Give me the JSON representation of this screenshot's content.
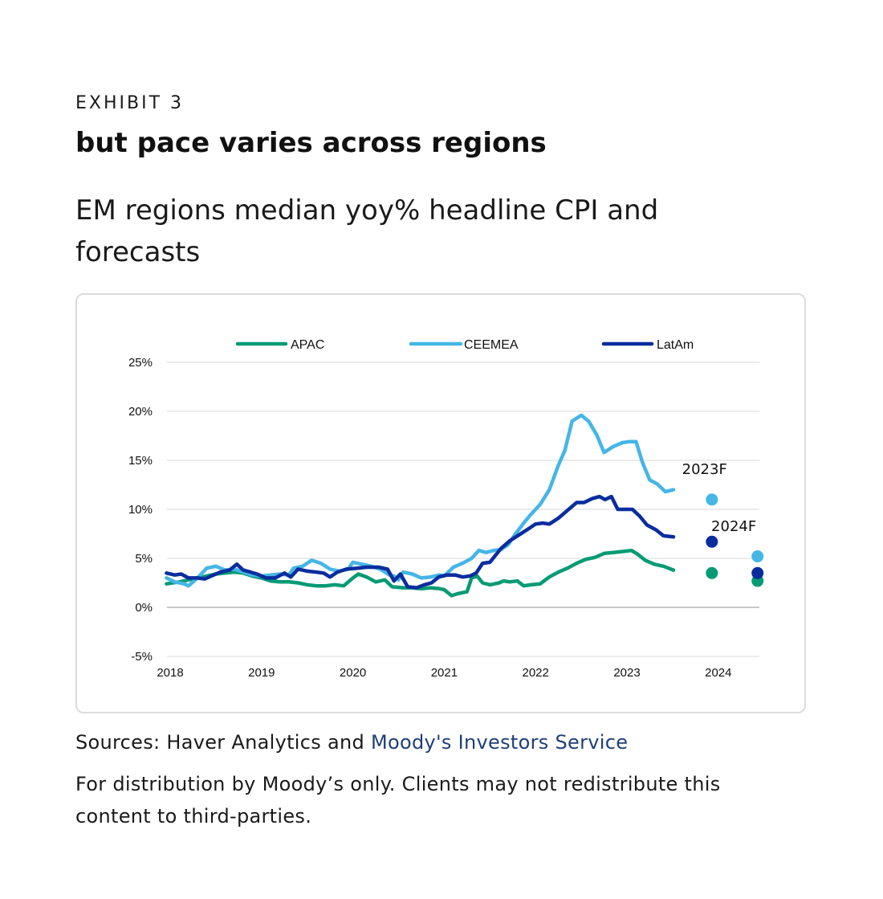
{
  "header": {
    "exhibit": "EXHIBIT 3",
    "title": "but pace varies across regions",
    "subtitle": "EM regions median yoy% headline CPI and forecasts"
  },
  "footer": {
    "sources_prefix": "Sources: Haver Analytics and ",
    "sources_link": "Moody's Investors Service",
    "distribution": "For distribution by Moody’s only. Clients may not redistribute this content to third-parties."
  },
  "colors": {
    "APAC": "#079b74",
    "CEEMEA": "#45b6e6",
    "LatAm": "#0a2d9e",
    "grid": "#d9d9d9",
    "zero_line": "#a6a6a6"
  },
  "chart_data": {
    "type": "line",
    "title": "",
    "xlabel": "",
    "ylabel": "",
    "x_range": [
      2018,
      2024.5
    ],
    "ylim": [
      -5,
      25
    ],
    "y_ticks": [
      -5,
      0,
      5,
      10,
      15,
      20,
      25
    ],
    "y_tick_labels": [
      "-5%",
      "0%",
      "5%",
      "10%",
      "15%",
      "20%",
      "25%"
    ],
    "x_ticks": [
      2018,
      2019,
      2020,
      2021,
      2022,
      2023,
      2024
    ],
    "x_tick_labels": [
      "2018",
      "2019",
      "2020",
      "2021",
      "2022",
      "2023",
      "2024"
    ],
    "grid": true,
    "legend_position": "top",
    "series": [
      {
        "name": "APAC",
        "color": "#079b74",
        "points": [
          [
            2017.96,
            2.4
          ],
          [
            2018.1,
            2.6
          ],
          [
            2018.2,
            2.8
          ],
          [
            2018.3,
            3.0
          ],
          [
            2018.4,
            3.2
          ],
          [
            2018.5,
            3.4
          ],
          [
            2018.6,
            3.5
          ],
          [
            2018.7,
            3.6
          ],
          [
            2018.8,
            3.5
          ],
          [
            2018.9,
            3.2
          ],
          [
            2019.0,
            3.0
          ],
          [
            2019.1,
            2.7
          ],
          [
            2019.2,
            2.6
          ],
          [
            2019.3,
            2.6
          ],
          [
            2019.4,
            2.5
          ],
          [
            2019.5,
            2.3
          ],
          [
            2019.6,
            2.2
          ],
          [
            2019.7,
            2.2
          ],
          [
            2019.8,
            2.3
          ],
          [
            2019.9,
            2.2
          ],
          [
            2020.0,
            3.0
          ],
          [
            2020.06,
            3.4
          ],
          [
            2020.15,
            3.1
          ],
          [
            2020.25,
            2.6
          ],
          [
            2020.35,
            2.8
          ],
          [
            2020.43,
            2.1
          ],
          [
            2020.55,
            2.0
          ],
          [
            2020.65,
            2.0
          ],
          [
            2020.75,
            1.9
          ],
          [
            2020.85,
            2.0
          ],
          [
            2020.95,
            1.9
          ],
          [
            2021.0,
            1.8
          ],
          [
            2021.08,
            1.2
          ],
          [
            2021.15,
            1.4
          ],
          [
            2021.2,
            1.5
          ],
          [
            2021.25,
            1.6
          ],
          [
            2021.3,
            3.0
          ],
          [
            2021.36,
            3.2
          ],
          [
            2021.42,
            2.5
          ],
          [
            2021.5,
            2.3
          ],
          [
            2021.6,
            2.5
          ],
          [
            2021.65,
            2.7
          ],
          [
            2021.72,
            2.6
          ],
          [
            2021.8,
            2.7
          ],
          [
            2021.87,
            2.2
          ],
          [
            2021.95,
            2.3
          ],
          [
            2022.05,
            2.4
          ],
          [
            2022.15,
            3.1
          ],
          [
            2022.25,
            3.6
          ],
          [
            2022.35,
            4.0
          ],
          [
            2022.45,
            4.5
          ],
          [
            2022.55,
            4.9
          ],
          [
            2022.65,
            5.1
          ],
          [
            2022.75,
            5.5
          ],
          [
            2022.85,
            5.6
          ],
          [
            2022.95,
            5.7
          ],
          [
            2023.05,
            5.8
          ],
          [
            2023.12,
            5.4
          ],
          [
            2023.2,
            4.8
          ],
          [
            2023.3,
            4.4
          ],
          [
            2023.4,
            4.2
          ],
          [
            2023.51,
            3.8
          ]
        ],
        "forecasts": [
          {
            "label": "2023F",
            "x": 2023.93,
            "y": 3.5
          },
          {
            "label": "2024F",
            "x": 2024.43,
            "y": 2.7
          }
        ]
      },
      {
        "name": "CEEMEA",
        "color": "#45b6e6",
        "points": [
          [
            2017.96,
            3.0
          ],
          [
            2018.05,
            2.6
          ],
          [
            2018.15,
            2.4
          ],
          [
            2018.2,
            2.2
          ],
          [
            2018.3,
            3.0
          ],
          [
            2018.4,
            4.0
          ],
          [
            2018.5,
            4.2
          ],
          [
            2018.6,
            3.8
          ],
          [
            2018.7,
            3.9
          ],
          [
            2018.8,
            3.6
          ],
          [
            2018.9,
            3.3
          ],
          [
            2019.0,
            3.2
          ],
          [
            2019.1,
            3.3
          ],
          [
            2019.2,
            3.4
          ],
          [
            2019.3,
            3.3
          ],
          [
            2019.35,
            4.0
          ],
          [
            2019.45,
            4.2
          ],
          [
            2019.55,
            4.8
          ],
          [
            2019.65,
            4.5
          ],
          [
            2019.75,
            3.9
          ],
          [
            2019.85,
            3.7
          ],
          [
            2019.95,
            3.9
          ],
          [
            2020.0,
            4.6
          ],
          [
            2020.1,
            4.4
          ],
          [
            2020.2,
            4.2
          ],
          [
            2020.3,
            3.9
          ],
          [
            2020.4,
            3.3
          ],
          [
            2020.45,
            3.2
          ],
          [
            2020.5,
            2.8
          ],
          [
            2020.55,
            3.6
          ],
          [
            2020.65,
            3.4
          ],
          [
            2020.75,
            3.0
          ],
          [
            2020.85,
            3.1
          ],
          [
            2020.95,
            3.3
          ],
          [
            2021.0,
            3.2
          ],
          [
            2021.1,
            4.1
          ],
          [
            2021.2,
            4.5
          ],
          [
            2021.3,
            5.0
          ],
          [
            2021.38,
            5.8
          ],
          [
            2021.46,
            5.6
          ],
          [
            2021.54,
            5.8
          ],
          [
            2021.62,
            5.9
          ],
          [
            2021.7,
            6.4
          ],
          [
            2021.78,
            7.5
          ],
          [
            2021.87,
            8.6
          ],
          [
            2021.95,
            9.5
          ],
          [
            2022.05,
            10.5
          ],
          [
            2022.15,
            12.0
          ],
          [
            2022.25,
            14.5
          ],
          [
            2022.32,
            16.0
          ],
          [
            2022.4,
            19.0
          ],
          [
            2022.5,
            19.6
          ],
          [
            2022.58,
            19.0
          ],
          [
            2022.67,
            17.6
          ],
          [
            2022.75,
            15.8
          ],
          [
            2022.85,
            16.4
          ],
          [
            2022.95,
            16.8
          ],
          [
            2023.02,
            16.9
          ],
          [
            2023.1,
            16.9
          ],
          [
            2023.17,
            14.8
          ],
          [
            2023.25,
            13.0
          ],
          [
            2023.33,
            12.6
          ],
          [
            2023.42,
            11.8
          ],
          [
            2023.51,
            12.0
          ]
        ],
        "forecasts": [
          {
            "label": "2023F",
            "x": 2023.93,
            "y": 11.0
          },
          {
            "label": "2024F",
            "x": 2024.43,
            "y": 5.2
          }
        ]
      },
      {
        "name": "LatAm",
        "color": "#0a2d9e",
        "points": [
          [
            2017.96,
            3.5
          ],
          [
            2018.05,
            3.3
          ],
          [
            2018.12,
            3.4
          ],
          [
            2018.2,
            3.0
          ],
          [
            2018.3,
            3.0
          ],
          [
            2018.38,
            2.9
          ],
          [
            2018.45,
            3.2
          ],
          [
            2018.55,
            3.6
          ],
          [
            2018.65,
            3.8
          ],
          [
            2018.73,
            4.4
          ],
          [
            2018.8,
            3.8
          ],
          [
            2018.88,
            3.6
          ],
          [
            2018.95,
            3.4
          ],
          [
            2019.05,
            3.0
          ],
          [
            2019.15,
            3.0
          ],
          [
            2019.25,
            3.5
          ],
          [
            2019.32,
            3.1
          ],
          [
            2019.4,
            3.9
          ],
          [
            2019.5,
            3.7
          ],
          [
            2019.6,
            3.6
          ],
          [
            2019.68,
            3.5
          ],
          [
            2019.75,
            3.1
          ],
          [
            2019.83,
            3.6
          ],
          [
            2019.93,
            3.9
          ],
          [
            2020.05,
            4.0
          ],
          [
            2020.15,
            4.1
          ],
          [
            2020.28,
            4.1
          ],
          [
            2020.38,
            3.9
          ],
          [
            2020.45,
            2.7
          ],
          [
            2020.52,
            3.4
          ],
          [
            2020.6,
            2.1
          ],
          [
            2020.7,
            2.0
          ],
          [
            2020.78,
            2.3
          ],
          [
            2020.86,
            2.5
          ],
          [
            2020.94,
            3.1
          ],
          [
            2021.03,
            3.3
          ],
          [
            2021.12,
            3.3
          ],
          [
            2021.2,
            3.1
          ],
          [
            2021.28,
            3.2
          ],
          [
            2021.35,
            3.5
          ],
          [
            2021.42,
            4.5
          ],
          [
            2021.5,
            4.6
          ],
          [
            2021.62,
            6.0
          ],
          [
            2021.72,
            6.8
          ],
          [
            2021.82,
            7.4
          ],
          [
            2021.92,
            8.0
          ],
          [
            2022.0,
            8.5
          ],
          [
            2022.08,
            8.6
          ],
          [
            2022.15,
            8.5
          ],
          [
            2022.25,
            9.1
          ],
          [
            2022.35,
            9.9
          ],
          [
            2022.45,
            10.7
          ],
          [
            2022.53,
            10.7
          ],
          [
            2022.62,
            11.1
          ],
          [
            2022.7,
            11.3
          ],
          [
            2022.76,
            11.0
          ],
          [
            2022.83,
            11.3
          ],
          [
            2022.9,
            10.0
          ],
          [
            2022.98,
            10.0
          ],
          [
            2023.06,
            10.0
          ],
          [
            2023.14,
            9.3
          ],
          [
            2023.22,
            8.4
          ],
          [
            2023.32,
            7.9
          ],
          [
            2023.4,
            7.3
          ],
          [
            2023.51,
            7.2
          ]
        ],
        "forecasts": [
          {
            "label": "2023F",
            "x": 2023.93,
            "y": 6.7
          },
          {
            "label": "2024F",
            "x": 2024.43,
            "y": 3.5
          }
        ]
      }
    ],
    "annotations": [
      {
        "text": "2023F",
        "x": 2023.85,
        "y": 13.6
      },
      {
        "text": "2024F",
        "x": 2024.17,
        "y": 7.8
      }
    ]
  }
}
